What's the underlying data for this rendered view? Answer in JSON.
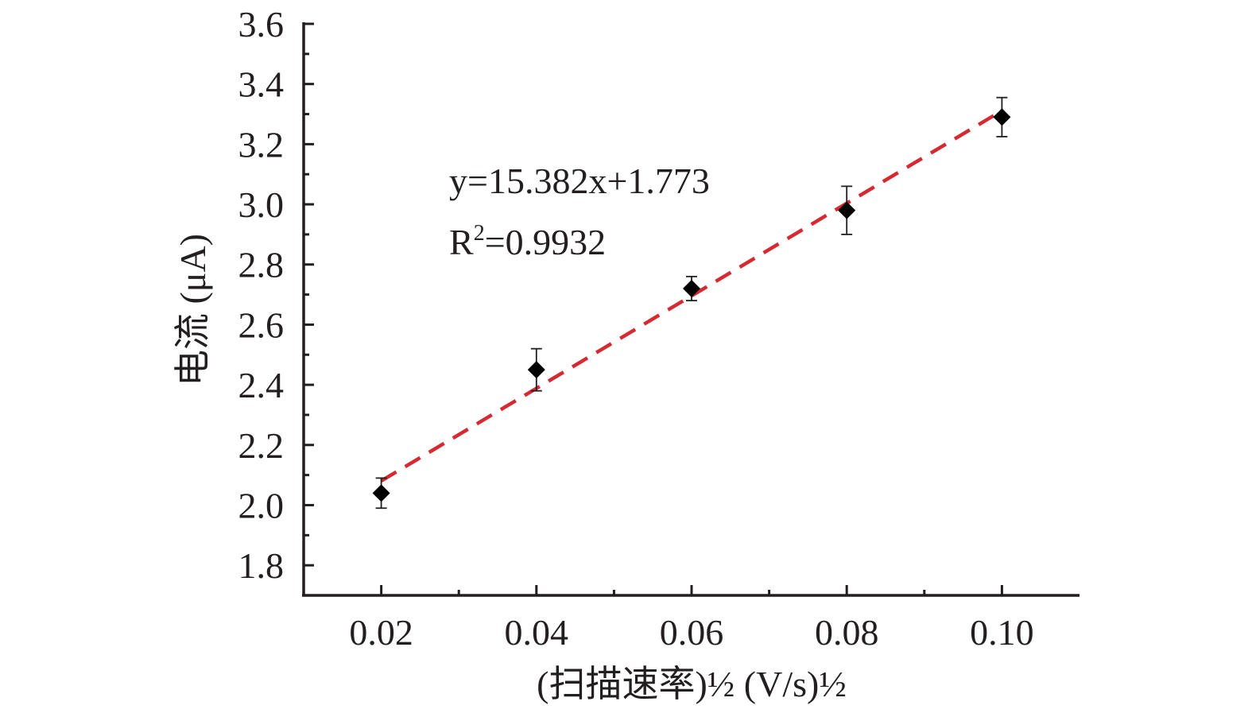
{
  "chart_data": {
    "type": "scatter",
    "title": "",
    "xlabel": "(扫描速率)½ (V/s)½",
    "ylabel": "电流 (μA)",
    "xlim": [
      0.01,
      0.11
    ],
    "ylim": [
      1.7,
      3.6
    ],
    "x_ticks": [
      0.02,
      0.04,
      0.06,
      0.08,
      0.1
    ],
    "x_tick_labels": [
      "0.02",
      "0.04",
      "0.06",
      "0.08",
      "0.10"
    ],
    "x_minor_ticks": [
      0.03,
      0.05,
      0.07,
      0.09
    ],
    "y_ticks": [
      1.8,
      2.0,
      2.2,
      2.4,
      2.6,
      2.8,
      3.0,
      3.2,
      3.4,
      3.6
    ],
    "y_tick_labels": [
      "1.8",
      "2.0",
      "2.2",
      "2.4",
      "2.6",
      "2.8",
      "3.0",
      "3.2",
      "3.4",
      "3.6"
    ],
    "y_minor_ticks": [
      1.9,
      2.1,
      2.3,
      2.5,
      2.7,
      2.9,
      3.1,
      3.3,
      3.5
    ],
    "grid": false,
    "series": [
      {
        "x": [
          0.02,
          0.04,
          0.06,
          0.08,
          0.1
        ],
        "y": [
          2.04,
          2.45,
          2.72,
          2.98,
          3.29
        ],
        "error": [
          0.05,
          0.07,
          0.04,
          0.08,
          0.065
        ],
        "marker": "diamond",
        "color": "#000000"
      }
    ],
    "fit": {
      "slope": 15.382,
      "intercept": 1.773,
      "x_range": [
        0.02,
        0.1
      ],
      "style": "dashed",
      "color": "#d62a32"
    },
    "annotations": {
      "equation": "y=15.382x+1.773",
      "r2_prefix": "R",
      "r2_sup": "2",
      "r2_value": "=0.9932"
    }
  }
}
